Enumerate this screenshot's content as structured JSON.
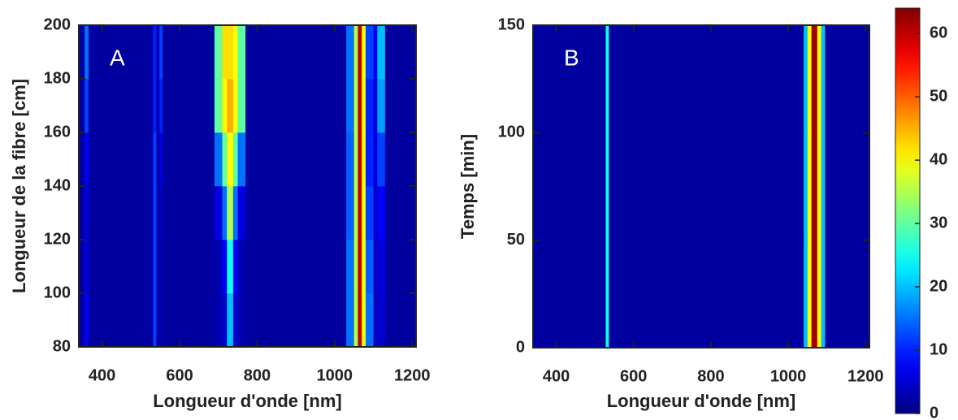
{
  "chart_data": [
    {
      "type": "heatmap",
      "annotation": "A",
      "x_label": "Longueur d'onde [nm]",
      "y_label": "Longueur de la fibre [cm]",
      "xlim": [
        340,
        1210
      ],
      "xticks": [
        400,
        600,
        800,
        1000,
        1200
      ],
      "ylim": [
        80,
        200
      ],
      "yticks": [
        80,
        100,
        120,
        140,
        160,
        180,
        200
      ],
      "xbins": [
        340,
        355,
        365,
        525,
        532,
        540,
        548,
        556,
        690,
        710,
        722,
        738,
        750,
        770,
        1030,
        1050,
        1060,
        1070,
        1080,
        1100,
        1110,
        1130,
        1210
      ],
      "ybins": [
        80,
        100,
        120,
        140,
        160,
        180,
        200
      ],
      "z": [
        [
          2,
          8,
          2,
          3,
          12,
          3,
          3,
          2,
          3,
          5,
          20,
          5,
          3,
          2,
          15,
          35,
          60,
          40,
          15,
          4,
          5,
          2
        ],
        [
          2,
          6,
          2,
          3,
          12,
          3,
          3,
          2,
          3,
          8,
          25,
          8,
          3,
          2,
          15,
          35,
          60,
          40,
          14,
          4,
          6,
          2
        ],
        [
          2,
          6,
          2,
          3,
          12,
          3,
          4,
          2,
          6,
          15,
          35,
          15,
          6,
          2,
          14,
          35,
          60,
          40,
          12,
          5,
          8,
          2
        ],
        [
          2,
          8,
          2,
          3,
          12,
          3,
          6,
          2,
          15,
          30,
          40,
          30,
          15,
          2,
          14,
          35,
          60,
          40,
          10,
          6,
          12,
          2
        ],
        [
          2,
          12,
          2,
          3,
          10,
          3,
          10,
          2,
          30,
          40,
          45,
          40,
          30,
          2,
          15,
          35,
          60,
          40,
          10,
          6,
          18,
          2
        ],
        [
          2,
          15,
          2,
          3,
          10,
          3,
          12,
          2,
          30,
          42,
          42,
          40,
          30,
          2,
          15,
          35,
          60,
          40,
          12,
          8,
          20,
          2
        ]
      ]
    },
    {
      "type": "heatmap",
      "annotation": "B",
      "x_label": "Longueur d'onde [nm]",
      "y_label": "Temps [min]",
      "xlim": [
        340,
        1210
      ],
      "xticks": [
        400,
        600,
        800,
        1000,
        1200
      ],
      "ylim": [
        0,
        150
      ],
      "yticks": [
        0,
        50,
        100,
        150
      ],
      "xbins": [
        340,
        528,
        536,
        1040,
        1050,
        1060,
        1075,
        1085,
        1095,
        1210
      ],
      "ybins": [
        0,
        50,
        100,
        150
      ],
      "z": [
        [
          2,
          25,
          2,
          20,
          40,
          62,
          40,
          20,
          2
        ],
        [
          2,
          25,
          2,
          20,
          40,
          62,
          40,
          20,
          2
        ],
        [
          2,
          25,
          2,
          20,
          40,
          62,
          40,
          20,
          2
        ]
      ]
    },
    {
      "type": "colorbar",
      "colormap": "jet",
      "clim": [
        0,
        64
      ],
      "cticks": [
        0,
        10,
        20,
        30,
        40,
        50,
        60
      ]
    }
  ]
}
